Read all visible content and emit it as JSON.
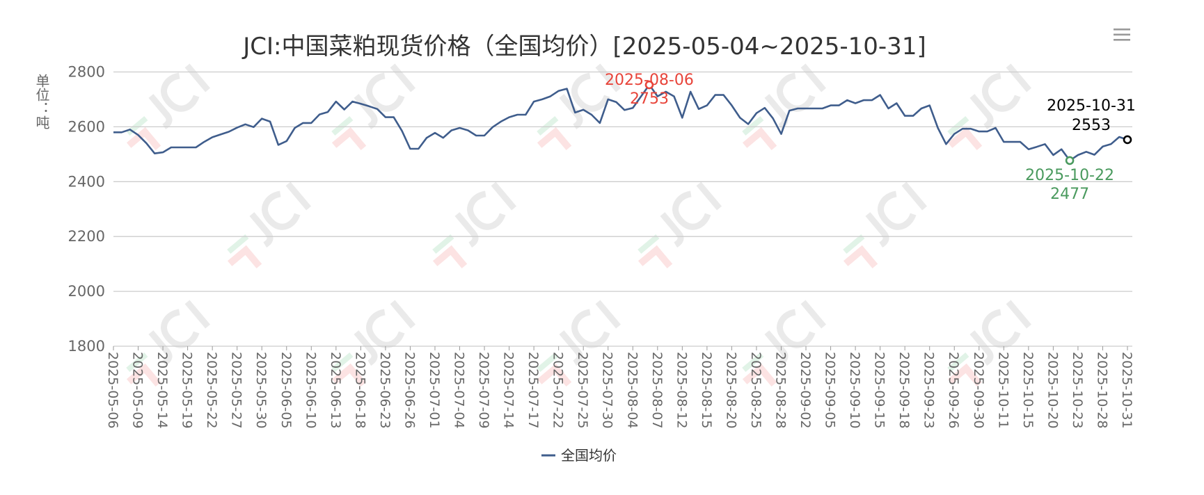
{
  "chart_data": {
    "type": "line",
    "title": "JCI:中国菜粕现货价格（全国均价）[2025-05-04~2025-10-31]",
    "ylabel": "单位：吨",
    "xlabel": "",
    "ylim": [
      1800,
      2800
    ],
    "yticks": [
      1800,
      2000,
      2200,
      2400,
      2600,
      2800
    ],
    "grid": true,
    "legend_position": "bottom",
    "tick_every": 3,
    "tick_labels": [
      "2025-05-06",
      "2025-05-09",
      "2025-05-14",
      "2025-05-19",
      "2025-05-22",
      "2025-05-27",
      "2025-05-30",
      "2025-06-05",
      "2025-06-10",
      "2025-06-13",
      "2025-06-18",
      "2025-06-23",
      "2025-06-26",
      "2025-07-01",
      "2025-07-04",
      "2025-07-09",
      "2025-07-14",
      "2025-07-17",
      "2025-07-22",
      "2025-07-25",
      "2025-07-30",
      "2025-08-04",
      "2025-08-07",
      "2025-08-12",
      "2025-08-15",
      "2025-08-20",
      "2025-08-25",
      "2025-08-28",
      "2025-09-02",
      "2025-09-05",
      "2025-09-10",
      "2025-09-15",
      "2025-09-18",
      "2025-09-23",
      "2025-09-26",
      "2025-09-30",
      "2025-10-11",
      "2025-10-15",
      "2025-10-20",
      "2025-10-23",
      "2025-10-28",
      "2025-10-31"
    ],
    "series": [
      {
        "name": "全国均价",
        "color": "#3f5d8c",
        "values": [
          2580,
          2580,
          2590,
          2570,
          2540,
          2503,
          2507,
          2525,
          2525,
          2525,
          2525,
          2545,
          2562,
          2572,
          2582,
          2597,
          2609,
          2599,
          2630,
          2619,
          2534,
          2548,
          2596,
          2614,
          2614,
          2645,
          2654,
          2692,
          2663,
          2692,
          2684,
          2675,
          2665,
          2635,
          2635,
          2585,
          2520,
          2520,
          2560,
          2578,
          2560,
          2587,
          2596,
          2587,
          2568,
          2568,
          2599,
          2619,
          2635,
          2644,
          2644,
          2692,
          2700,
          2711,
          2731,
          2739,
          2652,
          2662,
          2644,
          2614,
          2700,
          2690,
          2661,
          2669,
          2711,
          2753,
          2711,
          2728,
          2711,
          2633,
          2728,
          2665,
          2678,
          2716,
          2716,
          2678,
          2633,
          2610,
          2650,
          2669,
          2631,
          2574,
          2659,
          2667,
          2667,
          2667,
          2667,
          2678,
          2678,
          2697,
          2686,
          2697,
          2697,
          2716,
          2667,
          2686,
          2640,
          2640,
          2667,
          2678,
          2596,
          2537,
          2574,
          2593,
          2593,
          2583,
          2583,
          2596,
          2545,
          2545,
          2545,
          2518,
          2527,
          2537,
          2497,
          2518,
          2477,
          2497,
          2509,
          2498,
          2528,
          2537,
          2563,
          2553
        ]
      }
    ],
    "annotations": [
      {
        "label": "max",
        "date": "2025-08-06",
        "value": "2753",
        "index": 65,
        "color": "#e8443a"
      },
      {
        "label": "min",
        "date": "2025-10-22",
        "value": "2477",
        "index": 116,
        "color": "#4a9a5e"
      },
      {
        "label": "last",
        "date": "2025-10-31",
        "value": "2553",
        "index": 123,
        "color": "#000000"
      }
    ]
  },
  "watermark": "JCI",
  "menu_icon": "hamburger-menu-icon"
}
